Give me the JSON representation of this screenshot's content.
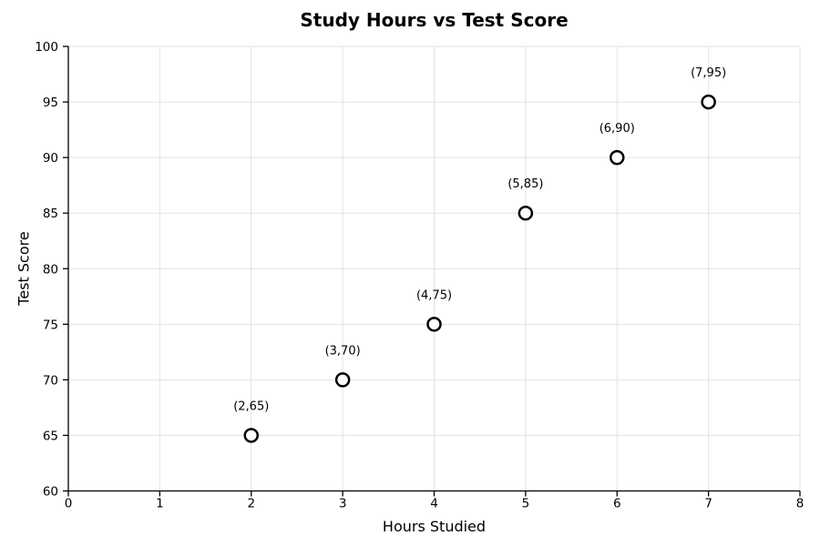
{
  "chart_data": {
    "type": "scatter",
    "title": "Study Hours vs Test Score",
    "xlabel": "Hours Studied",
    "ylabel": "Test Score",
    "xlim": [
      0,
      8
    ],
    "ylim": [
      60,
      100
    ],
    "xticks": [
      0,
      1,
      2,
      3,
      4,
      5,
      6,
      7,
      8
    ],
    "yticks": [
      60,
      65,
      70,
      75,
      80,
      85,
      90,
      95,
      100
    ],
    "grid": true,
    "legend": false,
    "points": [
      {
        "x": 2,
        "y": 65,
        "label": "(2,65)"
      },
      {
        "x": 3,
        "y": 70,
        "label": "(3,70)"
      },
      {
        "x": 4,
        "y": 75,
        "label": "(4,75)"
      },
      {
        "x": 5,
        "y": 85,
        "label": "(5,85)"
      },
      {
        "x": 6,
        "y": 90,
        "label": "(6,90)"
      },
      {
        "x": 7,
        "y": 95,
        "label": "(7,95)"
      }
    ],
    "colors": {
      "marker_fill": "#ffffff",
      "marker_stroke": "#000000",
      "grid": "#e2e2e2",
      "axis": "#000000",
      "text": "#000000"
    }
  }
}
